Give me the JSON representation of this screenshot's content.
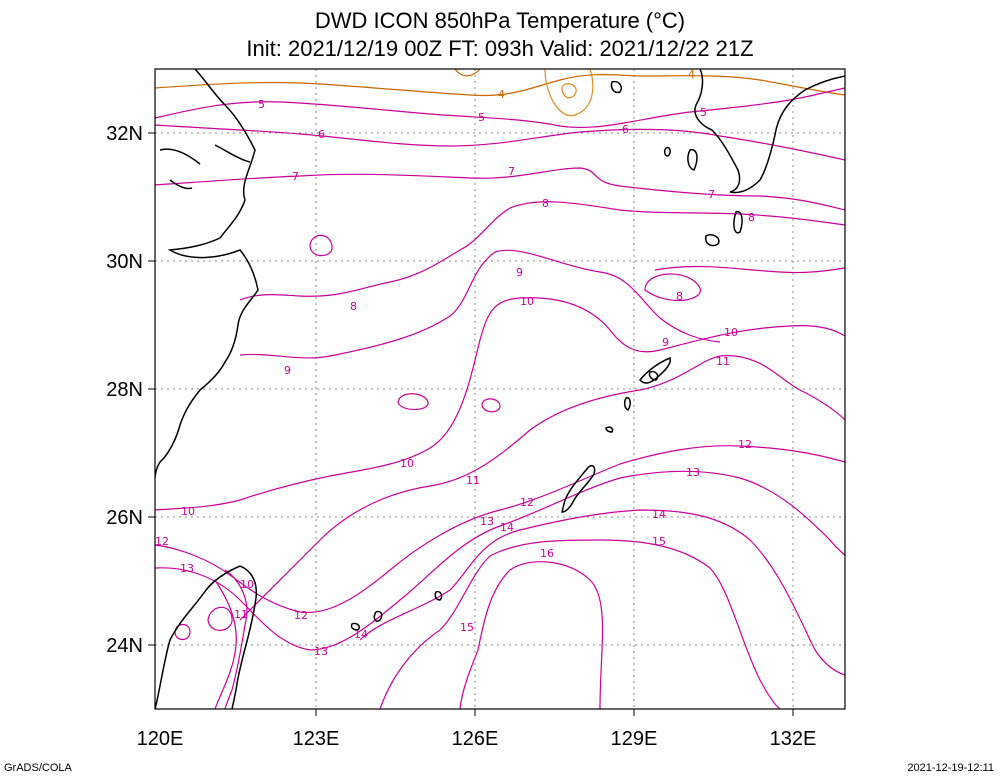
{
  "title": {
    "line1": "DWD ICON 850hPa Temperature (°C)",
    "line2": "Init: 2021/12/19 00Z  FT: 093h  Valid: 2021/12/22 21Z"
  },
  "footer": {
    "left": "GrADS/COLA",
    "right": "2021-12-19-12:11"
  },
  "colors": {
    "contour_main": "#cc0099",
    "contour_cool": "#cc6600",
    "contour_coolest": "#e08a20",
    "coast": "#000000",
    "grid": "#888888"
  },
  "map": {
    "lon_range": [
      120,
      133
    ],
    "lat_range": [
      23,
      33
    ],
    "x_ticks": [
      "120E",
      "123E",
      "126E",
      "129E",
      "132E"
    ],
    "y_ticks": [
      "24N",
      "26N",
      "28N",
      "30N",
      "32N"
    ]
  },
  "contour_labels": [
    "4",
    "5",
    "6",
    "7",
    "8",
    "9",
    "10",
    "11",
    "12",
    "13",
    "14",
    "15",
    "16"
  ]
}
